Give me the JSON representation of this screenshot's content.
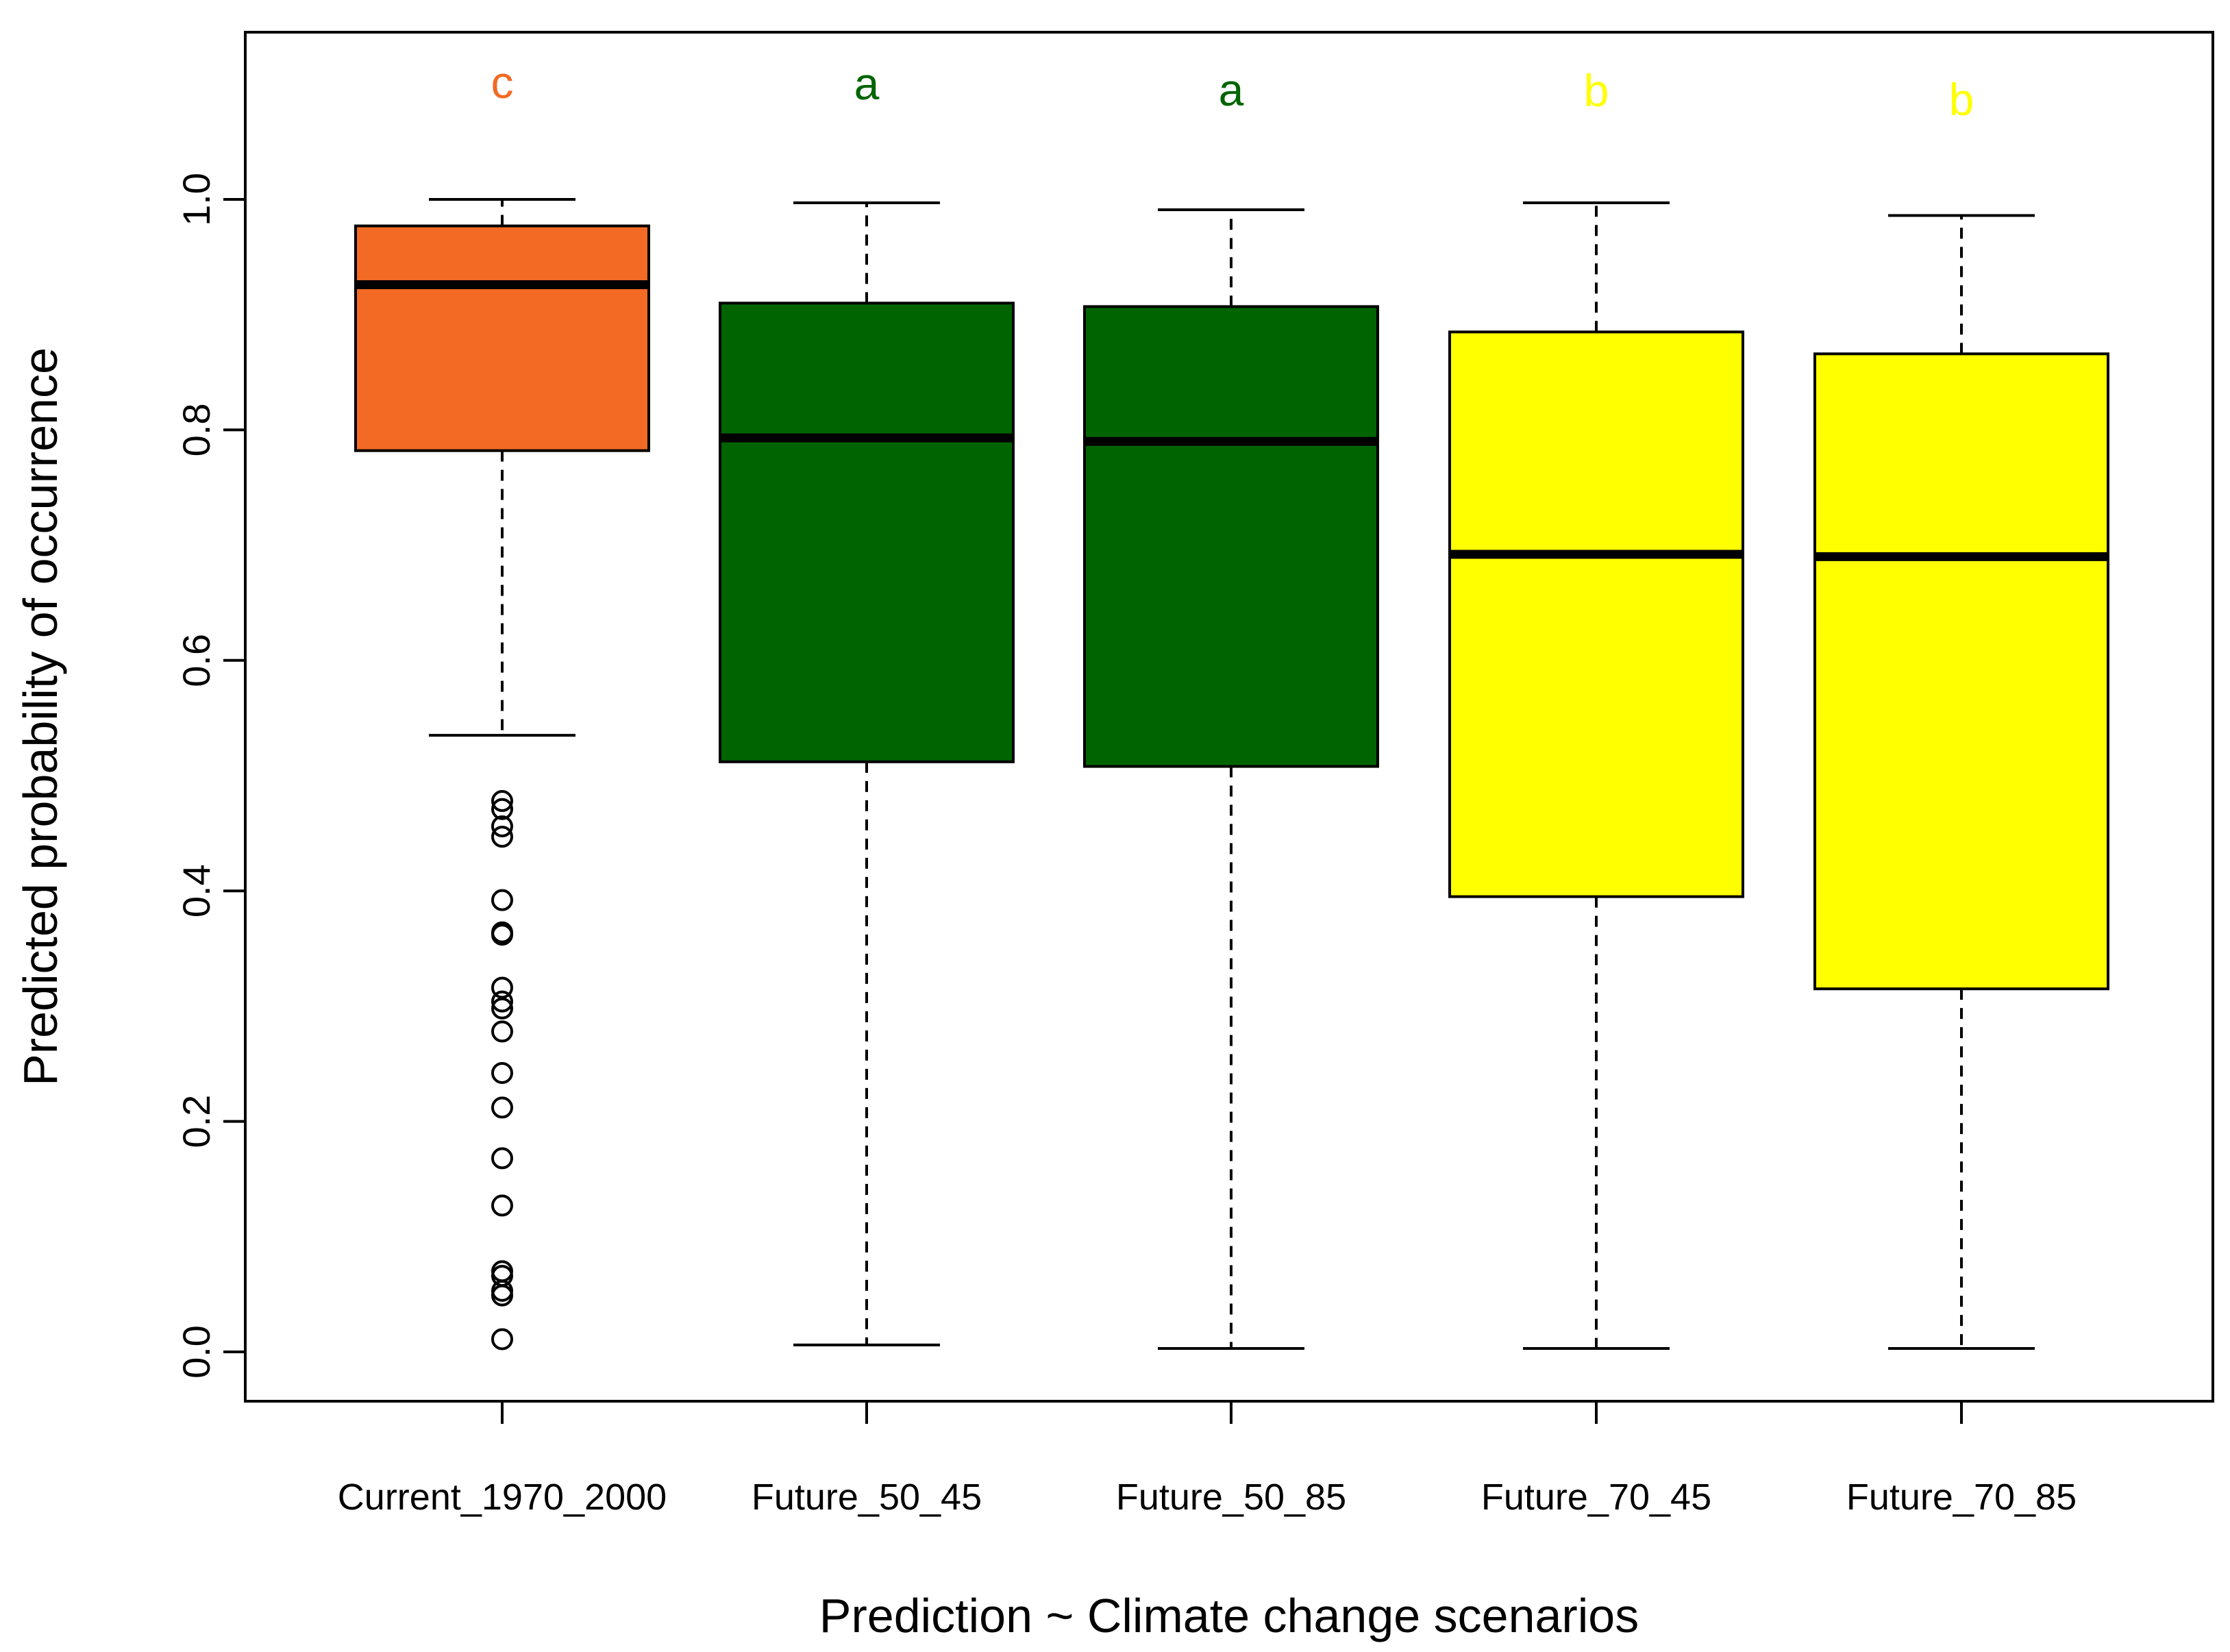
{
  "chart_data": {
    "type": "boxplot",
    "title": "",
    "xlabel": "Prediction ~ Climate change scenarios",
    "ylabel": "Predicted probability of occurrence",
    "ylim": [
      -0.04,
      1.15
    ],
    "yticks": [
      0.0,
      0.2,
      0.4,
      0.6,
      0.8,
      1.0
    ],
    "ytick_labels": [
      "0.0",
      "0.2",
      "0.4",
      "0.6",
      "0.8",
      "1.0"
    ],
    "grid": false,
    "categories": [
      "Current_1970_2000",
      "Future_50_45",
      "Future_50_85",
      "Future_70_45",
      "Future_70_85"
    ],
    "series": [
      {
        "name": "Current_1970_2000",
        "color": "#F26A24",
        "letter": "c",
        "letter_color": "#F26A24",
        "whisker_low": 0.535,
        "q1": 0.782,
        "median": 0.926,
        "q3": 0.977,
        "whisker_high": 1.0,
        "outliers": [
          0.478,
          0.471,
          0.456,
          0.447,
          0.392,
          0.364,
          0.362,
          0.316,
          0.304,
          0.298,
          0.278,
          0.242,
          0.212,
          0.168,
          0.127,
          0.07,
          0.066,
          0.053,
          0.049,
          0.011
        ]
      },
      {
        "name": "Future_50_45",
        "color": "#006400",
        "letter": "a",
        "letter_color": "#006400",
        "whisker_low": 0.006,
        "q1": 0.512,
        "median": 0.793,
        "q3": 0.91,
        "whisker_high": 0.997,
        "outliers": []
      },
      {
        "name": "Future_50_85",
        "color": "#006400",
        "letter": "a",
        "letter_color": "#006400",
        "whisker_low": 0.003,
        "q1": 0.508,
        "median": 0.79,
        "q3": 0.907,
        "whisker_high": 0.991,
        "outliers": []
      },
      {
        "name": "Future_70_45",
        "color": "#FFFF00",
        "letter": "b",
        "letter_color": "#FFFF00",
        "whisker_low": 0.003,
        "q1": 0.395,
        "median": 0.692,
        "q3": 0.885,
        "whisker_high": 0.997,
        "outliers": []
      },
      {
        "name": "Future_70_85",
        "color": "#FFFF00",
        "letter": "b",
        "letter_color": "#FFFF00",
        "whisker_low": 0.003,
        "q1": 0.315,
        "median": 0.69,
        "q3": 0.866,
        "whisker_high": 0.986,
        "outliers": []
      }
    ]
  }
}
